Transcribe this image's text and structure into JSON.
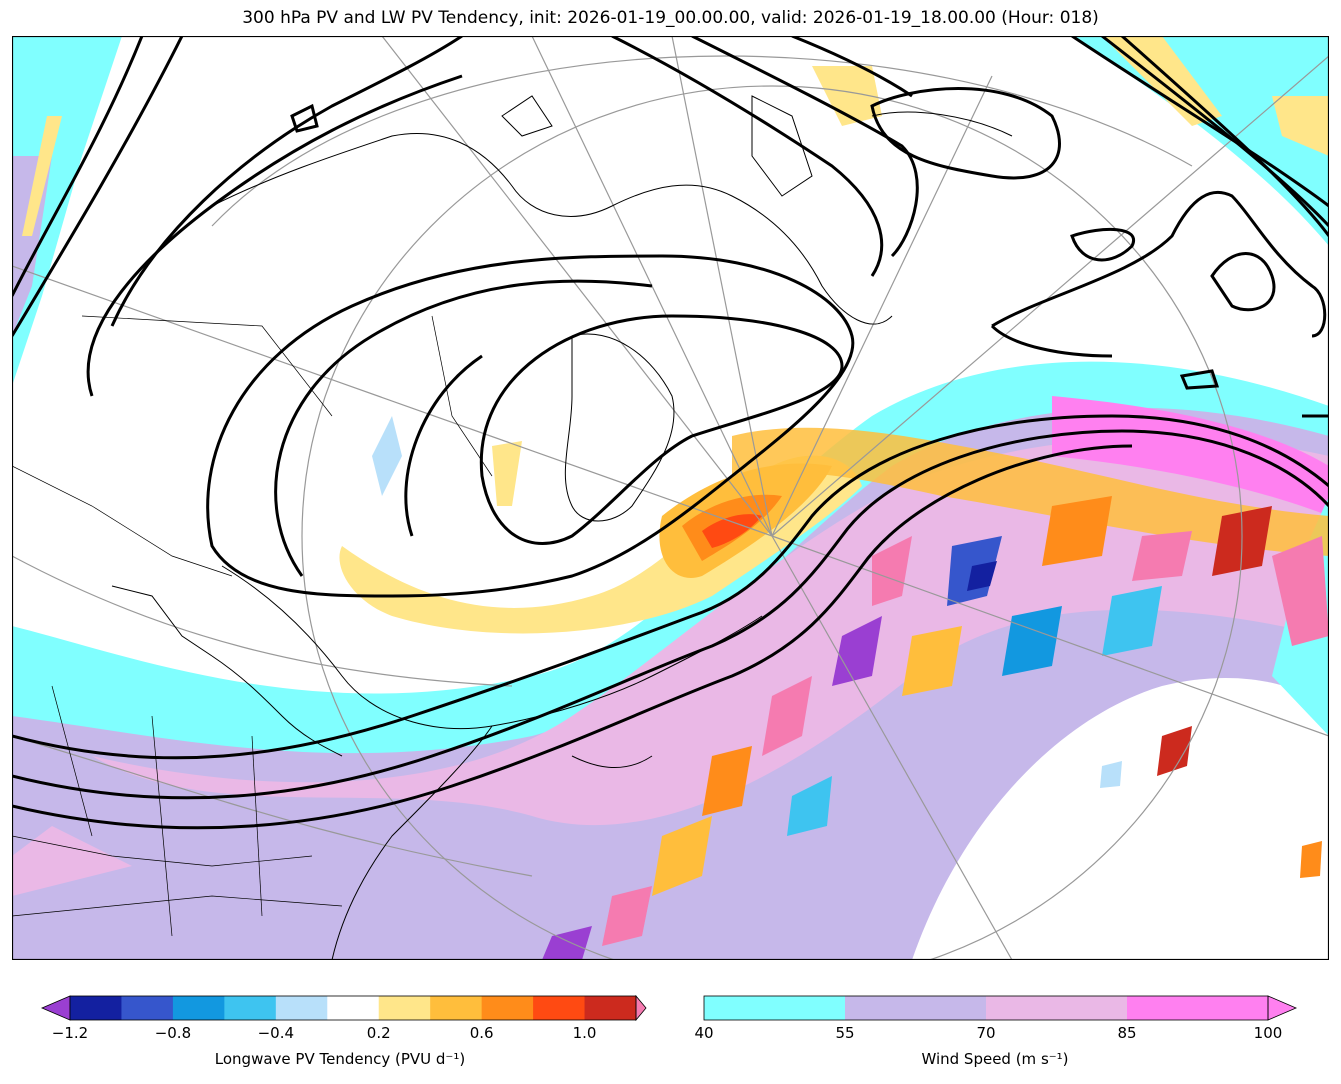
{
  "title": "300 hPa PV and LW PV Tendency, init: 2026-01-19_00.00.00, valid: 2026-01-19_18.00.00 (Hour: 018)",
  "colorbars": {
    "pv_tendency": {
      "label": "Longwave PV Tendency (PVU d⁻¹)",
      "ticks": [
        "−1.2",
        "−0.8",
        "−0.4",
        "0.2",
        "0.6",
        "1.0"
      ],
      "colors": [
        "#9a3fd2",
        "#1320a0",
        "#3656cc",
        "#1298e0",
        "#3ec4f0",
        "#b8e0fa",
        "#ffffff",
        "#ffe68a",
        "#ffbe3c",
        "#ff8c1a",
        "#ff4a12",
        "#cc2a1e",
        "#f57bb0"
      ]
    },
    "wind_speed": {
      "label": "Wind Speed (m s⁻¹)",
      "ticks": [
        "40",
        "55",
        "70",
        "85",
        "100"
      ],
      "colors": [
        "#80ffff",
        "#c6b8ea",
        "#eab8e6",
        "#ff80f0"
      ]
    }
  }
}
